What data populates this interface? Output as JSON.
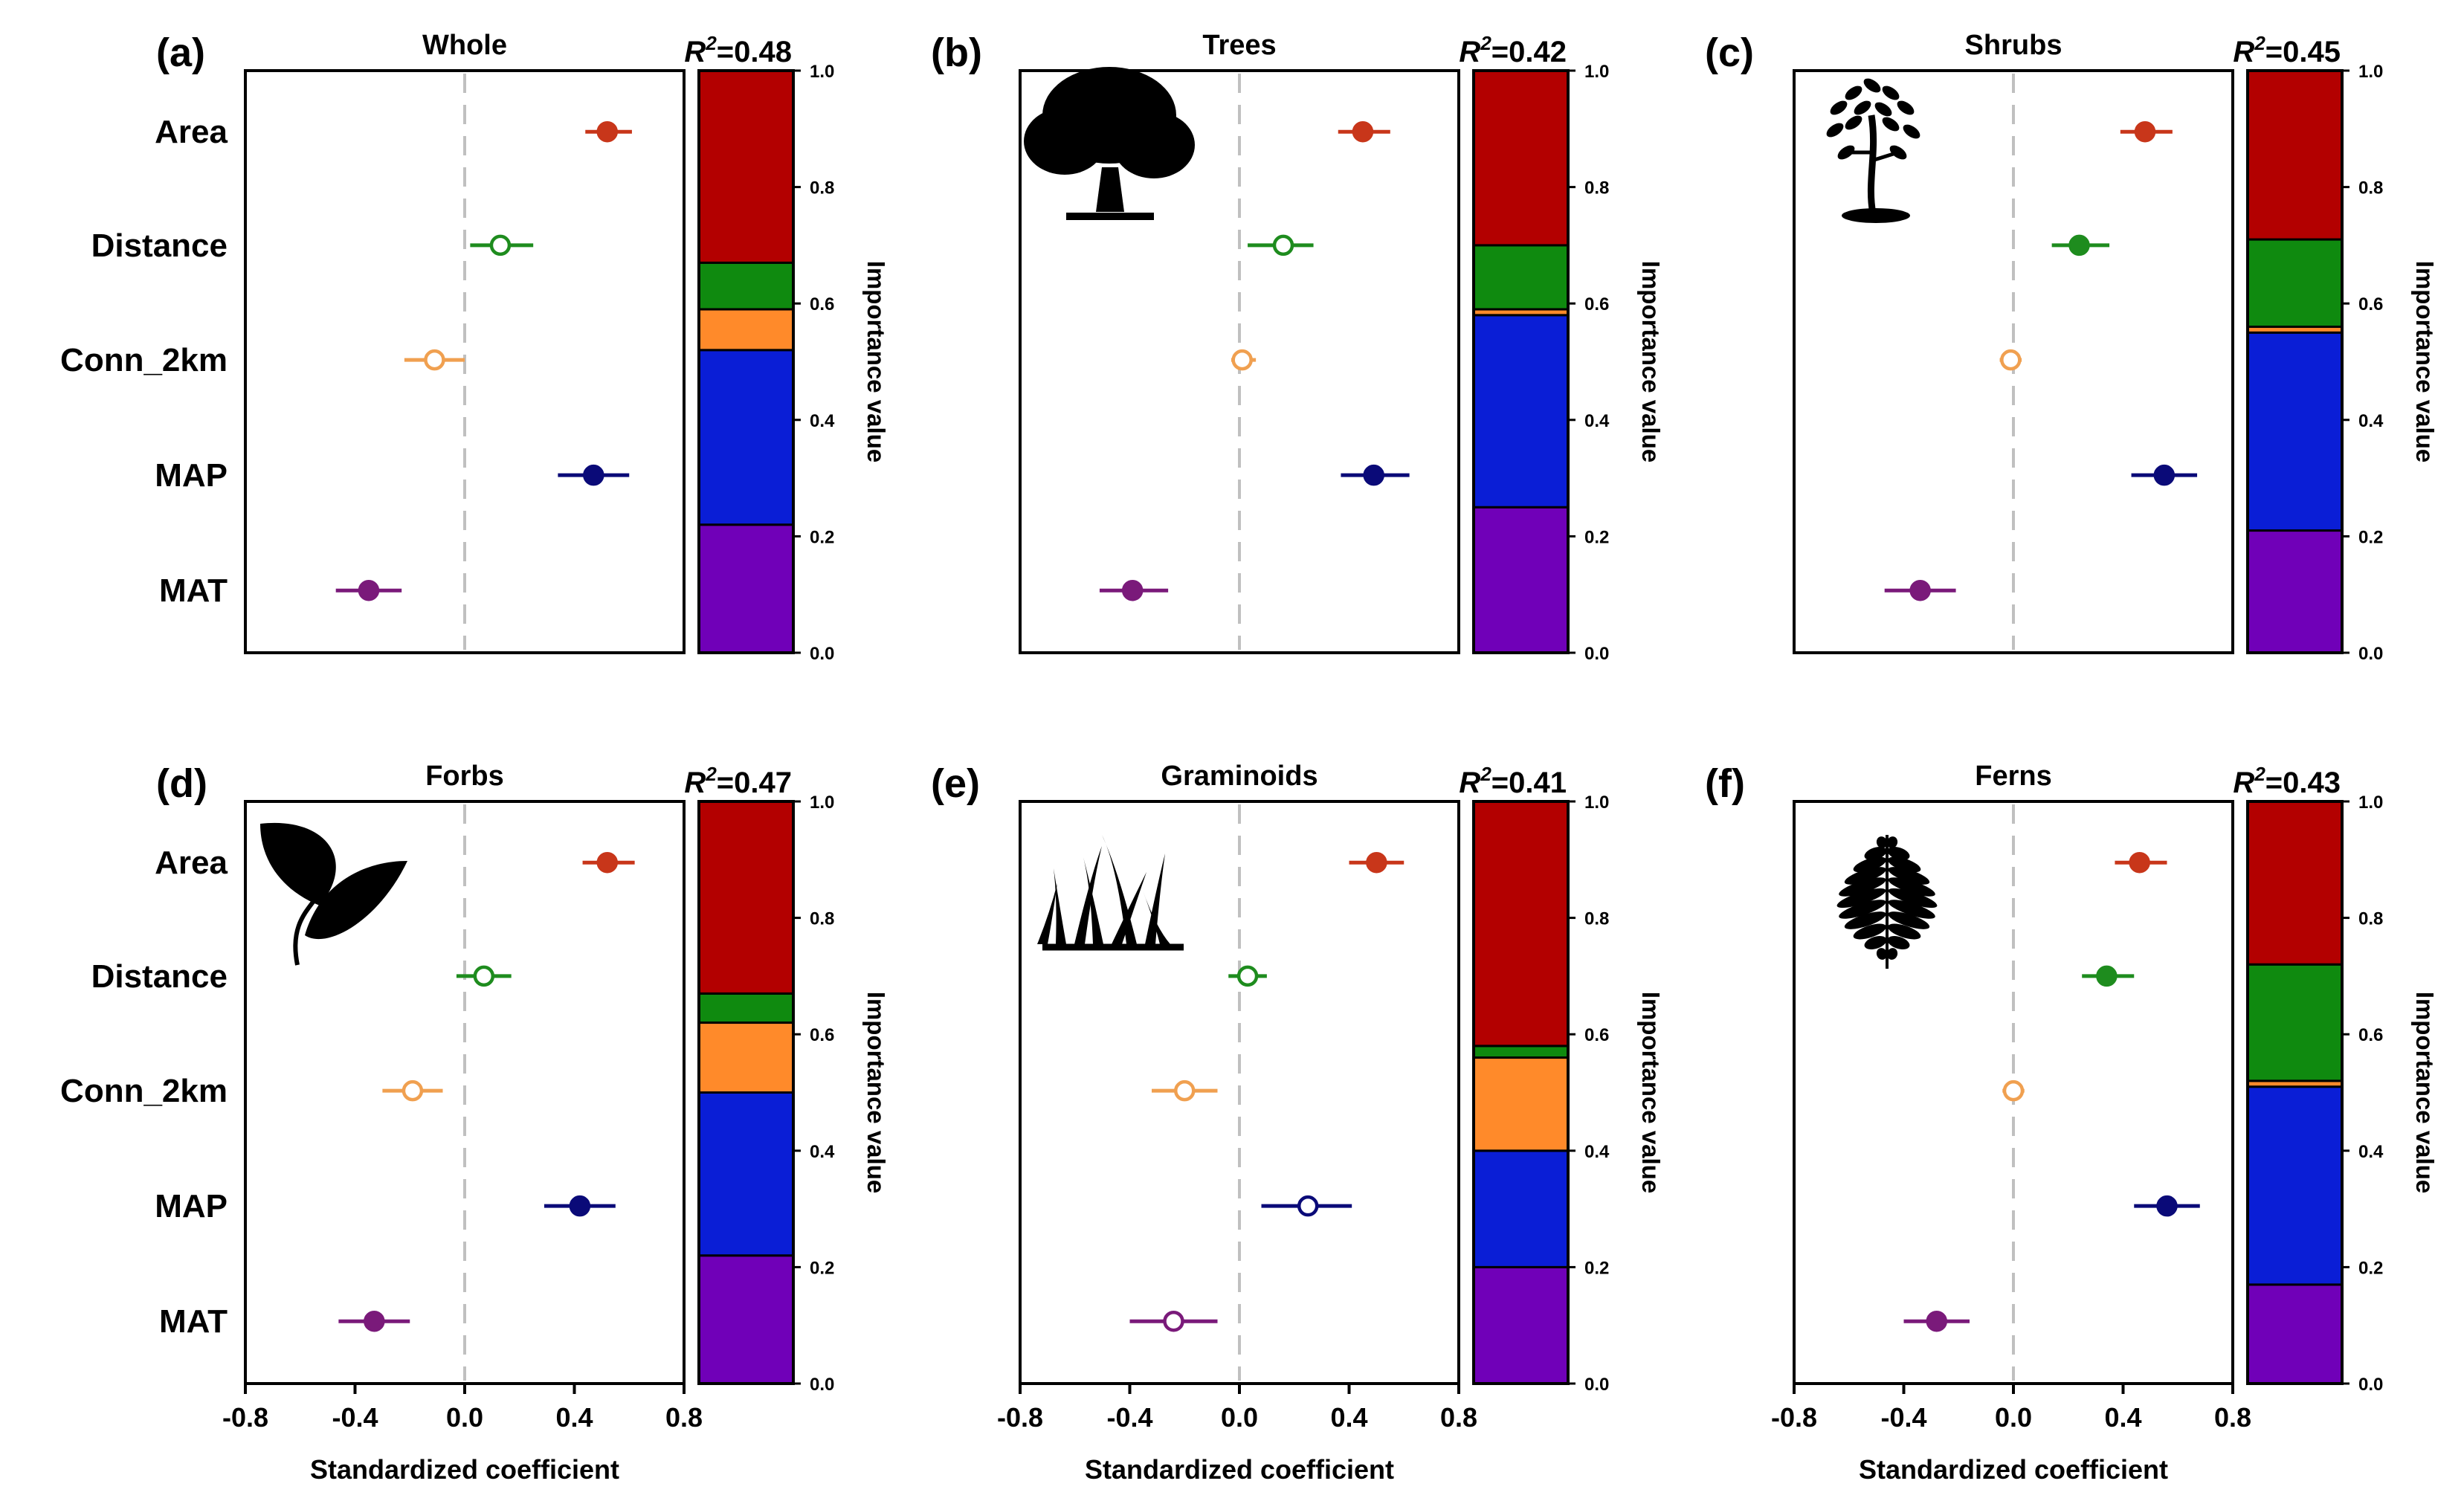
{
  "chart_data": {
    "type": "forest-plot-with-stacked-importance-bars",
    "variables": [
      "Area",
      "Distance",
      "Conn_2km",
      "MAP",
      "MAT"
    ],
    "x_axis": {
      "label": "Standardized coefficient",
      "range": [
        -0.8,
        0.8
      ],
      "ticks": [
        "-0.8",
        "-0.4",
        "0.0",
        "0.4",
        "0.8"
      ]
    },
    "importance_axis": {
      "label": "Importance value",
      "range": [
        0.0,
        1.0
      ],
      "ticks": [
        "0.0",
        "0.2",
        "0.4",
        "0.6",
        "0.8",
        "1.0"
      ]
    },
    "colors": {
      "Area": "#c8361a",
      "Distance": "#1e8c1e",
      "Conn_2km": "#f0a050",
      "MAP": "#0a0a78",
      "MAT": "#7a1a7a"
    },
    "bar_colors": {
      "Area": "#b30000",
      "Distance": "#0f8a0f",
      "Conn_2km": "#ff8a2a",
      "MAP": "#0a1ed6",
      "MAT": "#7000b8"
    },
    "panels": [
      {
        "label": "(a)",
        "title": "Whole",
        "r2_prefix": "R",
        "r2_value": "=0.48",
        "icon": "",
        "coefficients": [
          {
            "variable": "Area",
            "estimate": 0.52,
            "ci": [
              0.44,
              0.61
            ],
            "significant": true
          },
          {
            "variable": "Distance",
            "estimate": 0.13,
            "ci": [
              0.02,
              0.25
            ],
            "significant": false
          },
          {
            "variable": "Conn_2km",
            "estimate": -0.11,
            "ci": [
              -0.22,
              0.0
            ],
            "significant": false
          },
          {
            "variable": "MAP",
            "estimate": 0.47,
            "ci": [
              0.34,
              0.6
            ],
            "significant": true
          },
          {
            "variable": "MAT",
            "estimate": -0.35,
            "ci": [
              -0.47,
              -0.23
            ],
            "significant": true
          }
        ],
        "importance": [
          {
            "variable": "MAT",
            "value": 0.22
          },
          {
            "variable": "MAP",
            "value": 0.3
          },
          {
            "variable": "Conn_2km",
            "value": 0.07
          },
          {
            "variable": "Distance",
            "value": 0.08
          },
          {
            "variable": "Area",
            "value": 0.33
          }
        ]
      },
      {
        "label": "(b)",
        "title": "Trees",
        "r2_prefix": "R",
        "r2_value": "=0.42",
        "icon": "tree-icon",
        "coefficients": [
          {
            "variable": "Area",
            "estimate": 0.45,
            "ci": [
              0.36,
              0.55
            ],
            "significant": true
          },
          {
            "variable": "Distance",
            "estimate": 0.16,
            "ci": [
              0.03,
              0.27
            ],
            "significant": false
          },
          {
            "variable": "Conn_2km",
            "estimate": 0.01,
            "ci": [
              -0.03,
              0.06
            ],
            "significant": false
          },
          {
            "variable": "MAP",
            "estimate": 0.49,
            "ci": [
              0.37,
              0.62
            ],
            "significant": true
          },
          {
            "variable": "MAT",
            "estimate": -0.39,
            "ci": [
              -0.51,
              -0.26
            ],
            "significant": true
          }
        ],
        "importance": [
          {
            "variable": "MAT",
            "value": 0.25
          },
          {
            "variable": "MAP",
            "value": 0.33
          },
          {
            "variable": "Conn_2km",
            "value": 0.01
          },
          {
            "variable": "Distance",
            "value": 0.11
          },
          {
            "variable": "Area",
            "value": 0.3
          }
        ]
      },
      {
        "label": "(c)",
        "title": "Shrubs",
        "r2_prefix": "R",
        "r2_value": "=0.45",
        "icon": "shrub-icon",
        "coefficients": [
          {
            "variable": "Area",
            "estimate": 0.48,
            "ci": [
              0.39,
              0.58
            ],
            "significant": true
          },
          {
            "variable": "Distance",
            "estimate": 0.24,
            "ci": [
              0.14,
              0.35
            ],
            "significant": true
          },
          {
            "variable": "Conn_2km",
            "estimate": -0.01,
            "ci": [
              -0.05,
              0.03
            ],
            "significant": false
          },
          {
            "variable": "MAP",
            "estimate": 0.55,
            "ci": [
              0.43,
              0.67
            ],
            "significant": true
          },
          {
            "variable": "MAT",
            "estimate": -0.34,
            "ci": [
              -0.47,
              -0.21
            ],
            "significant": true
          }
        ],
        "importance": [
          {
            "variable": "MAT",
            "value": 0.21
          },
          {
            "variable": "MAP",
            "value": 0.34
          },
          {
            "variable": "Conn_2km",
            "value": 0.01
          },
          {
            "variable": "Distance",
            "value": 0.15
          },
          {
            "variable": "Area",
            "value": 0.29
          }
        ]
      },
      {
        "label": "(d)",
        "title": "Forbs",
        "r2_prefix": "R",
        "r2_value": "=0.47",
        "icon": "leaf-icon",
        "coefficients": [
          {
            "variable": "Area",
            "estimate": 0.52,
            "ci": [
              0.43,
              0.62
            ],
            "significant": true
          },
          {
            "variable": "Distance",
            "estimate": 0.07,
            "ci": [
              -0.03,
              0.17
            ],
            "significant": false
          },
          {
            "variable": "Conn_2km",
            "estimate": -0.19,
            "ci": [
              -0.3,
              -0.08
            ],
            "significant": false
          },
          {
            "variable": "MAP",
            "estimate": 0.42,
            "ci": [
              0.29,
              0.55
            ],
            "significant": true
          },
          {
            "variable": "MAT",
            "estimate": -0.33,
            "ci": [
              -0.46,
              -0.2
            ],
            "significant": true
          }
        ],
        "importance": [
          {
            "variable": "MAT",
            "value": 0.22
          },
          {
            "variable": "MAP",
            "value": 0.28
          },
          {
            "variable": "Conn_2km",
            "value": 0.12
          },
          {
            "variable": "Distance",
            "value": 0.05
          },
          {
            "variable": "Area",
            "value": 0.33
          }
        ]
      },
      {
        "label": "(e)",
        "title": "Graminoids",
        "r2_prefix": "R",
        "r2_value": "=0.41",
        "icon": "grass-icon",
        "coefficients": [
          {
            "variable": "Area",
            "estimate": 0.5,
            "ci": [
              0.4,
              0.6
            ],
            "significant": true
          },
          {
            "variable": "Distance",
            "estimate": 0.03,
            "ci": [
              -0.04,
              0.1
            ],
            "significant": false
          },
          {
            "variable": "Conn_2km",
            "estimate": -0.2,
            "ci": [
              -0.32,
              -0.08
            ],
            "significant": false
          },
          {
            "variable": "MAP",
            "estimate": 0.25,
            "ci": [
              0.08,
              0.41
            ],
            "significant": false
          },
          {
            "variable": "MAT",
            "estimate": -0.24,
            "ci": [
              -0.4,
              -0.08
            ],
            "significant": false
          }
        ],
        "importance": [
          {
            "variable": "MAT",
            "value": 0.2
          },
          {
            "variable": "MAP",
            "value": 0.2
          },
          {
            "variable": "Conn_2km",
            "value": 0.16
          },
          {
            "variable": "Distance",
            "value": 0.02
          },
          {
            "variable": "Area",
            "value": 0.42
          }
        ]
      },
      {
        "label": "(f)",
        "title": "Ferns",
        "r2_prefix": "R",
        "r2_value": "=0.43",
        "icon": "fern-icon",
        "coefficients": [
          {
            "variable": "Area",
            "estimate": 0.46,
            "ci": [
              0.37,
              0.56
            ],
            "significant": true
          },
          {
            "variable": "Distance",
            "estimate": 0.34,
            "ci": [
              0.25,
              0.44
            ],
            "significant": true
          },
          {
            "variable": "Conn_2km",
            "estimate": 0.0,
            "ci": [
              -0.04,
              0.04
            ],
            "significant": false
          },
          {
            "variable": "MAP",
            "estimate": 0.56,
            "ci": [
              0.44,
              0.68
            ],
            "significant": true
          },
          {
            "variable": "MAT",
            "estimate": -0.28,
            "ci": [
              -0.4,
              -0.16
            ],
            "significant": true
          }
        ],
        "importance": [
          {
            "variable": "MAT",
            "value": 0.17
          },
          {
            "variable": "MAP",
            "value": 0.34
          },
          {
            "variable": "Conn_2km",
            "value": 0.01
          },
          {
            "variable": "Distance",
            "value": 0.2
          },
          {
            "variable": "Area",
            "value": 0.28
          }
        ]
      }
    ]
  }
}
